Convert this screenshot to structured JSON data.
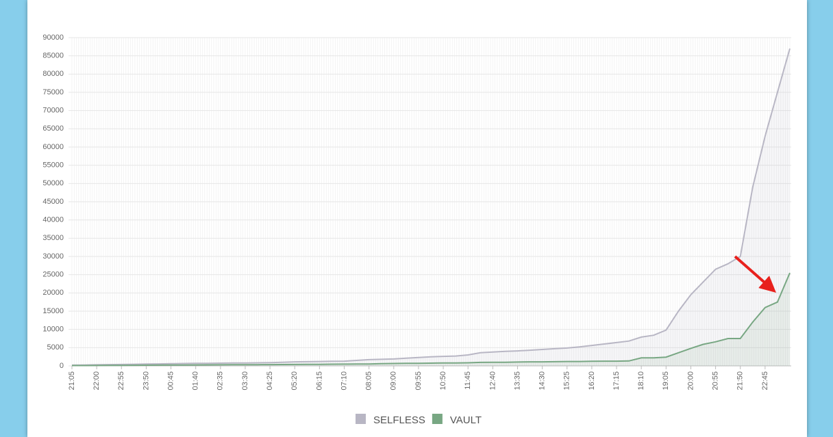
{
  "chart_data": {
    "type": "line",
    "categories": [
      "21:05",
      null,
      "22:00",
      null,
      "22:55",
      null,
      "23:50",
      null,
      "00:45",
      null,
      "01:40",
      null,
      "02:35",
      null,
      "03:30",
      null,
      "04:25",
      null,
      "05:20",
      null,
      "06:15",
      null,
      "07:10",
      null,
      "08:05",
      null,
      "09:00",
      null,
      "09:55",
      null,
      "10:50",
      null,
      "11:45",
      null,
      "12:40",
      null,
      "13:35",
      null,
      "14:30",
      null,
      "15:25",
      null,
      "16:20",
      null,
      "17:15",
      null,
      "18:10",
      null,
      "19:05",
      null,
      "20:00",
      null,
      "20:55",
      null,
      "21:50",
      null,
      "22:45",
      null,
      null
    ],
    "series": [
      {
        "name": "SELFLESS",
        "color": "#b8b6c4",
        "values": [
          200,
          250,
          300,
          350,
          400,
          450,
          500,
          550,
          600,
          650,
          700,
          720,
          750,
          780,
          800,
          850,
          900,
          1000,
          1100,
          1150,
          1200,
          1250,
          1300,
          1500,
          1700,
          1800,
          1900,
          2100,
          2300,
          2500,
          2600,
          2700,
          3000,
          3600,
          3800,
          4000,
          4100,
          4300,
          4500,
          4700,
          4900,
          5200,
          5600,
          6000,
          6400,
          6800,
          7900,
          8400,
          9800,
          15000,
          19500,
          23000,
          26500,
          28000,
          30000,
          49000,
          63000,
          75000,
          87000
        ]
      },
      {
        "name": "VAULT",
        "color": "#78a783",
        "values": [
          100,
          100,
          120,
          140,
          150,
          160,
          180,
          200,
          220,
          240,
          260,
          280,
          300,
          310,
          320,
          330,
          350,
          370,
          400,
          420,
          440,
          460,
          480,
          500,
          520,
          600,
          650,
          700,
          720,
          750,
          780,
          800,
          850,
          950,
          1000,
          1000,
          1050,
          1100,
          1100,
          1150,
          1200,
          1200,
          1250,
          1300,
          1300,
          1350,
          2200,
          2200,
          2400,
          3600,
          4800,
          5900,
          6600,
          7500,
          7500,
          12000,
          16000,
          17500,
          25500
        ]
      }
    ],
    "ylim": [
      0,
      90000
    ],
    "yticks": [
      0,
      5000,
      10000,
      15000,
      20000,
      25000,
      30000,
      35000,
      40000,
      45000,
      50000,
      55000,
      60000,
      65000,
      70000,
      75000,
      80000,
      85000,
      90000
    ],
    "grid": true,
    "legend": "bottom"
  }
}
